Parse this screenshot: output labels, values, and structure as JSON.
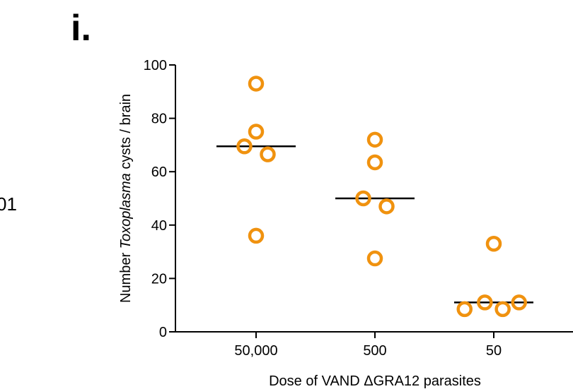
{
  "panel": {
    "letter": "i.",
    "cut_label": "01"
  },
  "chart_data": {
    "type": "scatter",
    "title": "",
    "ylabel_parts": [
      "Number ",
      "Toxoplasma",
      " cysts / brain"
    ],
    "xlabel": "Dose of VAND ΔGRA12 parasites",
    "ylim": [
      0,
      100
    ],
    "yticks": [
      0,
      20,
      40,
      60,
      80,
      100
    ],
    "categories": [
      "50,000",
      "500",
      "50"
    ],
    "marker_color": "#f0920f",
    "groups": [
      {
        "category": "50,000",
        "median": 69.5,
        "points": [
          {
            "jitter": 0,
            "y": 93
          },
          {
            "jitter": 0,
            "y": 75
          },
          {
            "jitter": -0.3,
            "y": 69.5
          },
          {
            "jitter": 0.3,
            "y": 66.5
          },
          {
            "jitter": 0,
            "y": 36
          }
        ]
      },
      {
        "category": "500",
        "median": 50,
        "points": [
          {
            "jitter": 0,
            "y": 72
          },
          {
            "jitter": 0,
            "y": 63.5
          },
          {
            "jitter": -0.3,
            "y": 50
          },
          {
            "jitter": 0.3,
            "y": 47
          },
          {
            "jitter": 0,
            "y": 27.5
          }
        ]
      },
      {
        "category": "50",
        "median": 11,
        "points": [
          {
            "jitter": 0,
            "y": 33
          },
          {
            "jitter": -0.23,
            "y": 11
          },
          {
            "jitter": 0.65,
            "y": 11
          },
          {
            "jitter": -0.75,
            "y": 8.5
          },
          {
            "jitter": 0.23,
            "y": 8.5
          }
        ]
      }
    ]
  }
}
